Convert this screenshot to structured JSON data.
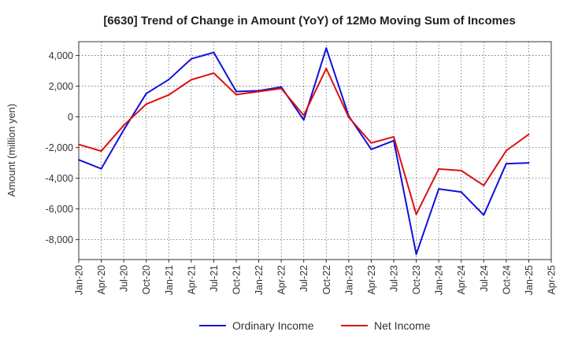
{
  "chart_data": {
    "type": "line",
    "title": "[6630]  Trend of Change in Amount (YoY) of 12Mo Moving Sum of Incomes",
    "xlabel": "",
    "ylabel": "Amount (million yen)",
    "ylim": [
      -9300,
      4900
    ],
    "yticks": [
      4000,
      2000,
      0,
      -2000,
      -4000,
      -6000,
      -8000
    ],
    "ytick_labels": [
      "4,000",
      "2,000",
      "0",
      "-2,000",
      "-4,000",
      "-6,000",
      "-8,000"
    ],
    "categories": [
      "Jan-20",
      "Apr-20",
      "Jul-20",
      "Oct-20",
      "Jan-21",
      "Apr-21",
      "Jul-21",
      "Oct-21",
      "Jan-22",
      "Apr-22",
      "Jul-22",
      "Oct-22",
      "Jan-23",
      "Apr-23",
      "Jul-23",
      "Oct-23",
      "Jan-24",
      "Apr-24",
      "Jul-24",
      "Oct-24",
      "Jan-25",
      "Apr-25"
    ],
    "grid": true,
    "legend_position": "bottom",
    "series": [
      {
        "name": "Ordinary Income",
        "color": "#1010dd",
        "values": [
          -2800,
          -3380,
          -850,
          1520,
          2430,
          3780,
          4200,
          1650,
          1700,
          1950,
          -200,
          4480,
          50,
          -2120,
          -1550,
          -8950,
          -4700,
          -4900,
          -6400,
          -3050,
          -3000,
          null
        ]
      },
      {
        "name": "Net Income",
        "color": "#dd1010",
        "values": [
          -1800,
          -2230,
          -550,
          830,
          1430,
          2420,
          2850,
          1450,
          1650,
          1850,
          100,
          3150,
          -30,
          -1700,
          -1300,
          -6350,
          -3400,
          -3500,
          -4470,
          -2200,
          -1140,
          null
        ]
      }
    ]
  }
}
